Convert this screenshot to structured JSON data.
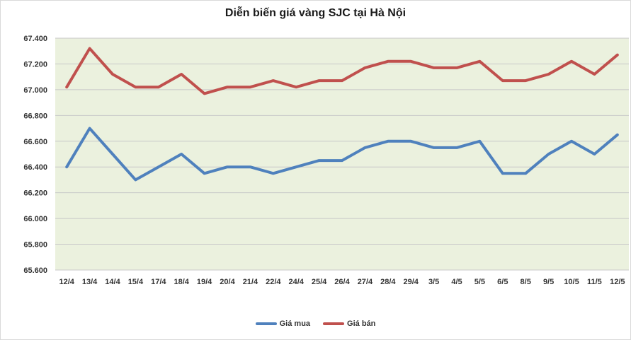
{
  "chart_data": {
    "type": "line",
    "title": "Diễn biến giá vàng SJC tại Hà Nội",
    "xlabel": "",
    "ylabel": "",
    "categories": [
      "12/4",
      "13/4",
      "14/4",
      "15/4",
      "17/4",
      "18/4",
      "19/4",
      "20/4",
      "21/4",
      "22/4",
      "24/4",
      "25/4",
      "26/4",
      "27/4",
      "28/4",
      "29/4",
      "3/5",
      "4/5",
      "5/5",
      "6/5",
      "8/5",
      "9/5",
      "10/5",
      "11/5",
      "12/5"
    ],
    "ylim": [
      65600,
      67400
    ],
    "yticks": [
      65600,
      65800,
      66000,
      66200,
      66400,
      66600,
      66800,
      67000,
      67200,
      67400
    ],
    "ytick_labels": [
      "65.600",
      "65.800",
      "66.000",
      "66.200",
      "66.400",
      "66.600",
      "66.800",
      "67.000",
      "67.200",
      "67.400"
    ],
    "grid": true,
    "legend_position": "bottom",
    "series": [
      {
        "name": "Giá mua",
        "color": "#4f81bd",
        "values": [
          66400,
          66700,
          66500,
          66300,
          66400,
          66500,
          66350,
          66400,
          66400,
          66350,
          66400,
          66450,
          66450,
          66550,
          66600,
          66600,
          66550,
          66550,
          66600,
          66350,
          66350,
          66500,
          66600,
          66500,
          66650
        ]
      },
      {
        "name": "Giá bán",
        "color": "#c0504d",
        "values": [
          67020,
          67320,
          67120,
          67020,
          67020,
          67120,
          66970,
          67020,
          67020,
          67070,
          67020,
          67070,
          67070,
          67170,
          67220,
          67220,
          67170,
          67170,
          67220,
          67070,
          67070,
          67120,
          67220,
          67120,
          67270
        ]
      }
    ]
  }
}
